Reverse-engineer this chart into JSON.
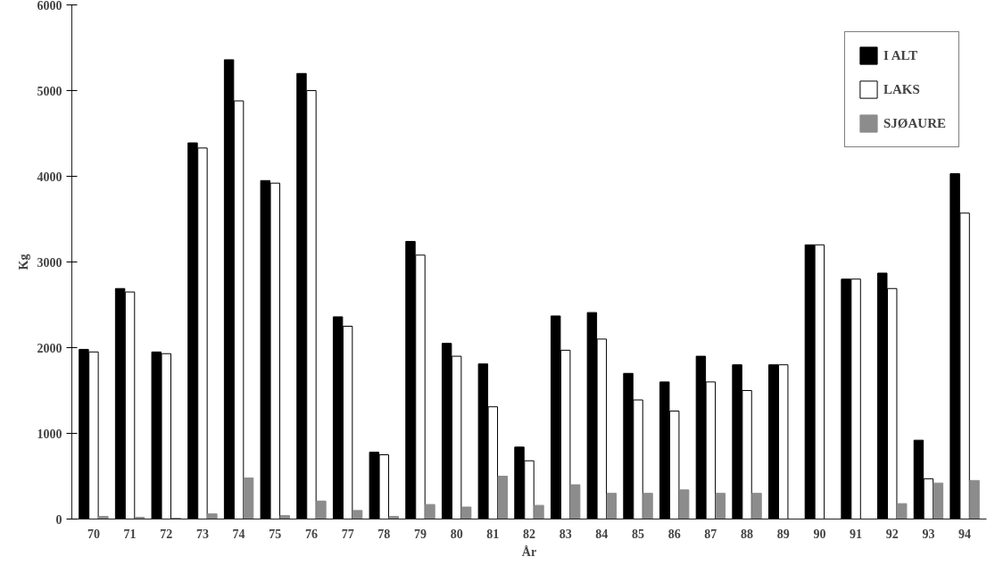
{
  "chart_data": {
    "type": "bar",
    "xlabel": "År",
    "ylabel": "Kg",
    "categories": [
      "70",
      "71",
      "72",
      "73",
      "74",
      "75",
      "76",
      "77",
      "78",
      "79",
      "80",
      "81",
      "82",
      "83",
      "84",
      "85",
      "86",
      "87",
      "88",
      "89",
      "90",
      "91",
      "92",
      "93",
      "94"
    ],
    "series": [
      {
        "name": "I ALT",
        "color": "#000000",
        "values": [
          1980,
          2690,
          1950,
          4390,
          5360,
          3950,
          5200,
          2360,
          780,
          3240,
          2050,
          1810,
          840,
          2370,
          2410,
          1700,
          1600,
          1900,
          1800,
          1800,
          3200,
          2800,
          2870,
          920,
          4030
        ]
      },
      {
        "name": "LAKS",
        "color": "#ffffff",
        "values": [
          1950,
          2650,
          1930,
          4330,
          4880,
          3920,
          5000,
          2250,
          750,
          3080,
          1900,
          1310,
          680,
          1970,
          2100,
          1390,
          1260,
          1600,
          1500,
          1800,
          3200,
          2800,
          2690,
          470,
          3570
        ]
      },
      {
        "name": "SJØAURE",
        "color": "#8c8c8c",
        "values": [
          30,
          20,
          10,
          60,
          480,
          40,
          210,
          100,
          30,
          170,
          140,
          500,
          160,
          400,
          300,
          300,
          340,
          300,
          300,
          0,
          0,
          0,
          180,
          420,
          450
        ]
      }
    ],
    "ylim": [
      0,
      6000
    ],
    "yticks": [
      0,
      1000,
      2000,
      3000,
      4000,
      5000,
      6000
    ],
    "grid": false,
    "legend": "top right"
  }
}
